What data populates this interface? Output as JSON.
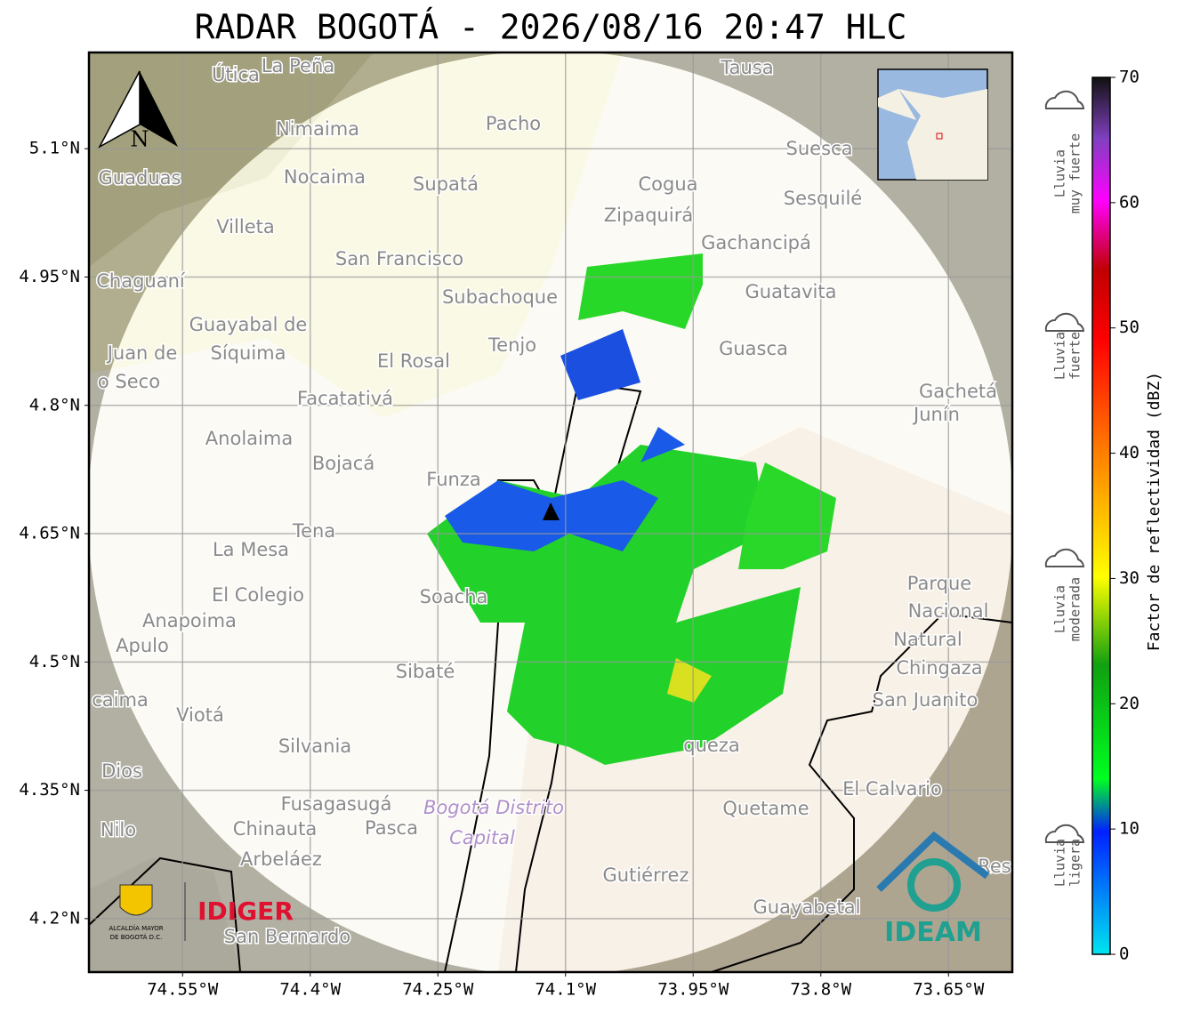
{
  "title": "RADAR BOGOTÁ - 2026/08/16 20:47 HLC",
  "map": {
    "xlim": [
      -74.66,
      -73.575
    ],
    "ylim": [
      4.1375,
      5.2125
    ],
    "xticks": [
      {
        "value": -74.55,
        "label": "74.55°W"
      },
      {
        "value": -74.4,
        "label": "74.4°W"
      },
      {
        "value": -74.25,
        "label": "74.25°W"
      },
      {
        "value": -74.1,
        "label": "74.1°W"
      },
      {
        "value": -73.95,
        "label": "73.95°W"
      },
      {
        "value": -73.8,
        "label": "73.8°W"
      },
      {
        "value": -73.65,
        "label": "73.65°W"
      }
    ],
    "yticks": [
      {
        "value": 5.1,
        "label": "5.1°N"
      },
      {
        "value": 4.95,
        "label": "4.95°N"
      },
      {
        "value": 4.8,
        "label": "4.8°N"
      },
      {
        "value": 4.65,
        "label": "4.65°N"
      },
      {
        "value": 4.5,
        "label": "4.5°N"
      },
      {
        "value": 4.35,
        "label": "4.35°N"
      },
      {
        "value": 4.2,
        "label": "4.2°N"
      }
    ],
    "grid": true,
    "north": "N",
    "places": [
      "Útica",
      "La Peña",
      "Tausa",
      "Pacho",
      "Nimaima",
      "Suesca",
      "Guaduas",
      "Nocaima",
      "Supatá",
      "Cogua",
      "Sesquilé",
      "Zipaquirá",
      "Villeta",
      "Gachancipá",
      "San Francisco",
      "Chaguaní",
      "Guatavita",
      "Subachoque",
      "Guayabal de",
      "Síquima",
      "Tenjo",
      "Guasca",
      "Juan de",
      "El Rosal",
      "o Seco",
      "Gachetá",
      "Junín",
      "Facatativá",
      "Anolaima",
      "Bojacá",
      "Funza",
      "Tena",
      "La Mesa",
      "Parque",
      "Nacional",
      "Natural",
      "Chingaza",
      "El Colegio",
      "Soacha",
      "Anapoima",
      "Apulo",
      "Sibaté",
      "San Juanito",
      "caima",
      "Viotá",
      "Silvania",
      "queza",
      "Dios",
      "El Calvario",
      "Fusagasugá",
      "Bogotá Distrito",
      "Quetame",
      "Nilo",
      "Chinauta",
      "Pasca",
      "Capital",
      "Arbeláez",
      "Gutiérrez",
      "Res",
      "Guayabetal",
      "San Bernardo"
    ]
  },
  "colorbar": {
    "label": "Factor de reflectividad (dBZ)",
    "lim": [
      0,
      70
    ],
    "ticks": [
      0,
      10,
      20,
      30,
      40,
      50,
      60,
      70
    ]
  },
  "rain_categories": [
    [
      "Lluvia",
      "muy fuerte"
    ],
    [
      "Lluvia",
      "fuerte"
    ],
    [
      "Lluvia",
      "moderada"
    ],
    [
      "Lluvia",
      "ligera"
    ]
  ],
  "logos": {
    "alcaldia": [
      "ALCALDÍA MAYOR",
      "DE BOGOTÁ D.C."
    ],
    "idiger": "IDIGER",
    "ideam": "IDEAM"
  }
}
